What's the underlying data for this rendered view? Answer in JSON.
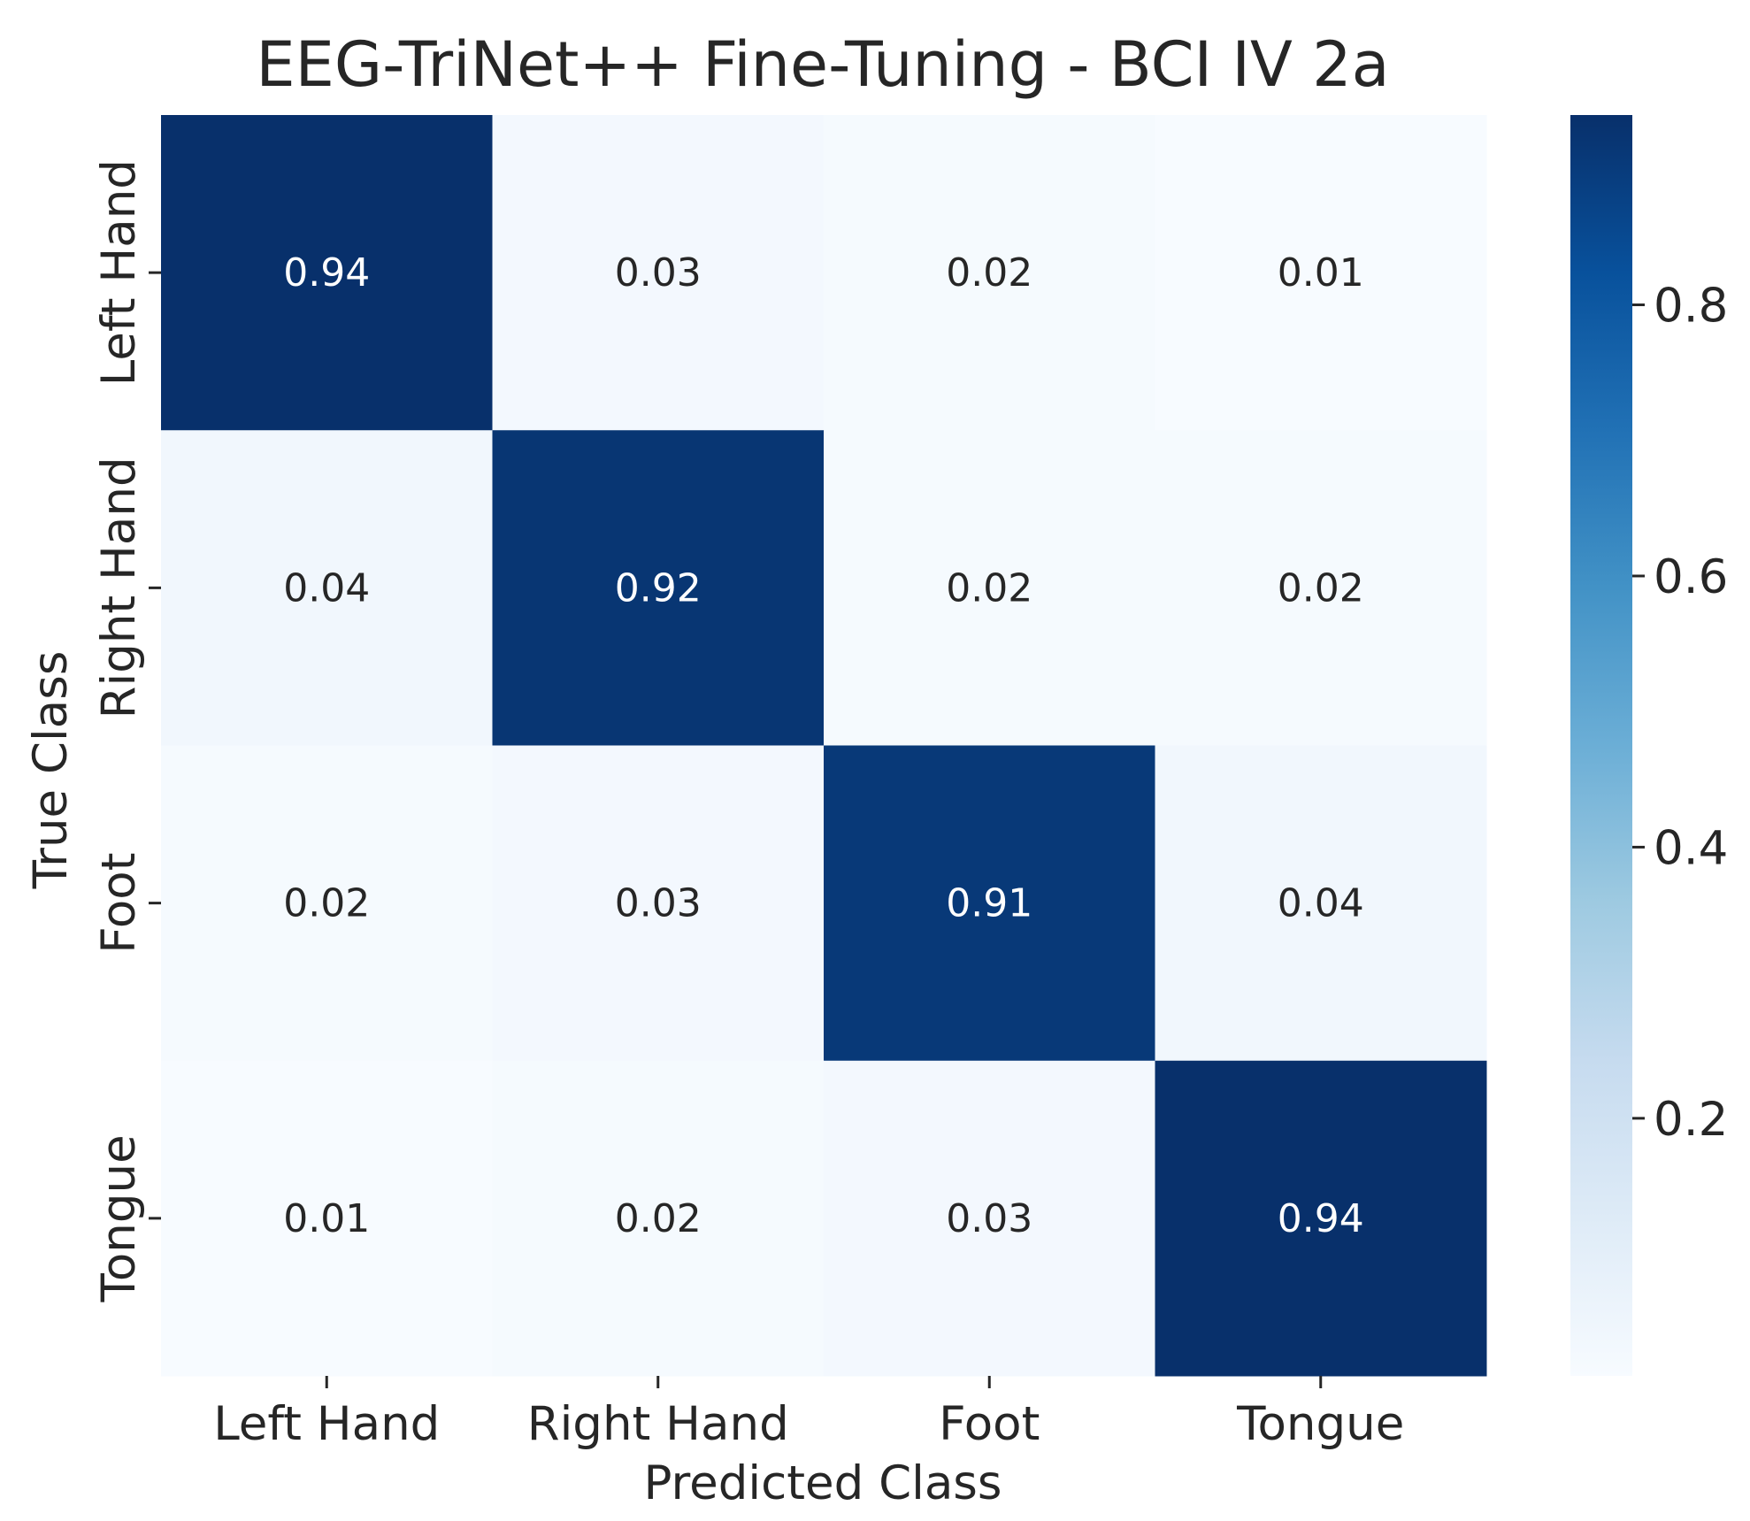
{
  "chart_data": {
    "type": "heatmap",
    "title": "EEG-TriNet++ Fine-Tuning - BCI IV 2a",
    "xlabel": "Predicted Class",
    "ylabel": "True Class",
    "x_categories": [
      "Left Hand",
      "Right Hand",
      "Foot",
      "Tongue"
    ],
    "y_categories": [
      "Left Hand",
      "Right Hand",
      "Foot",
      "Tongue"
    ],
    "values": [
      [
        0.94,
        0.03,
        0.02,
        0.01
      ],
      [
        0.04,
        0.92,
        0.02,
        0.02
      ],
      [
        0.02,
        0.03,
        0.91,
        0.04
      ],
      [
        0.01,
        0.02,
        0.03,
        0.94
      ]
    ],
    "value_labels": [
      [
        "0.94",
        "0.03",
        "0.02",
        "0.01"
      ],
      [
        "0.04",
        "0.92",
        "0.02",
        "0.02"
      ],
      [
        "0.02",
        "0.03",
        "0.91",
        "0.04"
      ],
      [
        "0.01",
        "0.02",
        "0.03",
        "0.94"
      ]
    ],
    "colormap": "Blues",
    "colormap_stops": [
      "#f7fbff",
      "#deebf7",
      "#c6dbef",
      "#9ecae1",
      "#6baed6",
      "#4292c6",
      "#2171b5",
      "#08519c",
      "#08306b"
    ],
    "colorbar": {
      "range": [
        0.01,
        0.94
      ],
      "ticks": [
        0.2,
        0.4,
        0.6,
        0.8
      ],
      "tick_labels": [
        "0.2",
        "0.4",
        "0.6",
        "0.8"
      ]
    },
    "annotation_colors": {
      "on_dark": "#ffffff",
      "on_light": "#262626"
    },
    "grid": false
  }
}
